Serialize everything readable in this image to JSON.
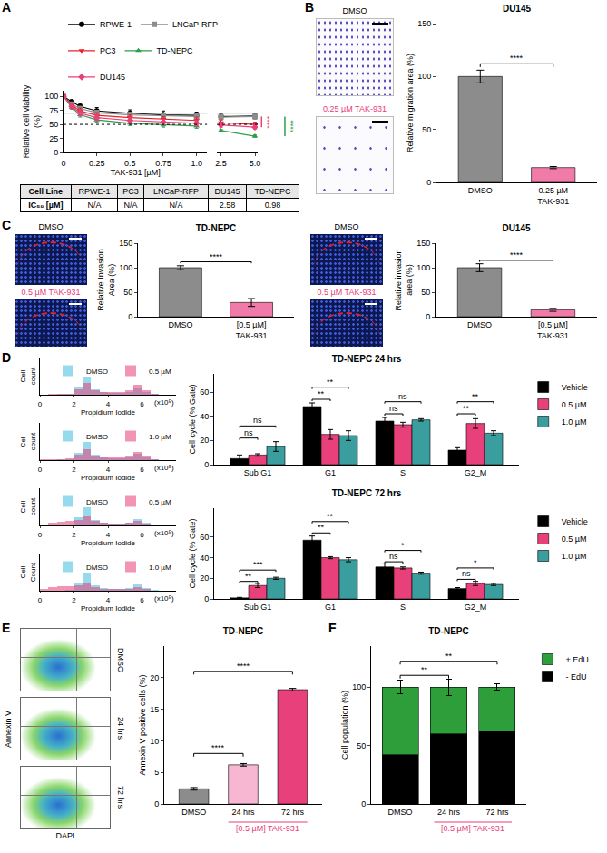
{
  "chart_data": [
    {
      "panel": "A",
      "type": "line",
      "xlabel": "TAK-931 [µM]",
      "ylabel": "Relative cell viability (%)",
      "x": [
        0,
        0.0625,
        0.125,
        0.25,
        0.5,
        0.75,
        1.0,
        2.5,
        5.0
      ],
      "xlim": [
        0,
        1.08
      ],
      "xticks": [
        0,
        0.25,
        0.5,
        0.75,
        {
          "value": 1,
          "label": "1.0"
        }
      ],
      "x2lim": [
        2.2,
        5.2
      ],
      "x2ticks": [
        2.5,
        {
          "value": 5,
          "label": "5.0"
        }
      ],
      "ylim": [
        0,
        110
      ],
      "yticks": [
        0,
        25,
        50,
        75,
        100
      ],
      "legend": "top",
      "series": [
        {
          "name": "RPWE-1",
          "color": "#000000",
          "marker": "circle",
          "values": [
            100,
            90,
            82,
            74,
            70,
            67,
            66,
            64,
            65
          ],
          "errors": [
            0,
            4,
            5,
            6,
            6,
            7,
            6,
            5,
            5
          ]
        },
        {
          "name": "LNCaP-RFP",
          "color": "#8c8c8c",
          "marker": "square",
          "values": [
            100,
            86,
            78,
            71,
            67,
            65,
            64,
            63,
            64
          ],
          "errors": [
            0,
            3,
            4,
            4,
            5,
            5,
            5,
            5,
            4
          ]
        },
        {
          "name": "PC3",
          "color": "#e8202a",
          "marker": "triangle-down",
          "values": [
            100,
            84,
            74,
            66,
            62,
            59,
            57,
            53,
            50
          ],
          "errors": [
            0,
            4,
            5,
            5,
            5,
            5,
            6,
            5,
            4
          ]
        },
        {
          "name": "TD-NEPC",
          "color": "#2e9e4a",
          "marker": "triangle-up",
          "values": [
            100,
            80,
            67,
            58,
            52,
            49,
            47,
            39,
            29
          ],
          "errors": [
            0,
            3,
            4,
            4,
            4,
            4,
            4,
            2,
            2
          ]
        },
        {
          "name": "DU145",
          "color": "#e8407a",
          "marker": "diamond",
          "values": [
            100,
            82,
            70,
            62,
            57,
            54,
            52,
            49,
            45
          ],
          "errors": [
            0,
            4,
            5,
            5,
            5,
            5,
            5,
            4,
            3
          ]
        }
      ],
      "reference_lines": [
        {
          "y": 50,
          "line_style": "dot",
          "color": "#000000"
        },
        {
          "y": 70,
          "line_style": "solid",
          "color": "#999999"
        }
      ],
      "annotations": [
        {
          "text": "****",
          "color": "#e8407a",
          "y": [
            45,
            64
          ]
        },
        {
          "text": "****",
          "color": "#2e9e4a",
          "y": [
            29,
            64
          ]
        }
      ]
    },
    {
      "panel": "B",
      "type": "bar",
      "title": "DU145",
      "ylabel": "Relative migration area (%)",
      "categories": [
        "DMSO",
        "0.25 µM TAK-931"
      ],
      "values": [
        100,
        14
      ],
      "errors": [
        6,
        1
      ],
      "colors": [
        "#8c8c8c",
        "#f07aa8"
      ],
      "ylim": [
        0,
        150
      ],
      "yticks": [
        0,
        50,
        100,
        150
      ],
      "annotations": [
        {
          "from": "DMSO",
          "to": "0.25 µM TAK-931",
          "text": "****",
          "y": 112
        }
      ]
    },
    {
      "panel": "C",
      "type": "bar",
      "title": "TD-NEPC",
      "ylabel": "Relative Invasion Area (%)",
      "categories": [
        "DMSO",
        "[0.5 µM] TAK-931"
      ],
      "values": [
        100,
        29
      ],
      "errors": [
        4,
        8
      ],
      "colors": [
        "#8c8c8c",
        "#f07aa8"
      ],
      "ylim": [
        0,
        150
      ],
      "yticks": [
        0,
        50,
        100,
        150
      ],
      "annotations": [
        {
          "from": "DMSO",
          "to": "[0.5 µM] TAK-931",
          "text": "****",
          "y": 112
        }
      ]
    },
    {
      "type": "bar",
      "title": "DU145",
      "ylabel": "Relative invasion area (%)",
      "categories": [
        "DMSO",
        "[0.5 µM] TAK-931"
      ],
      "values": [
        100,
        14
      ],
      "errors": [
        8,
        3
      ],
      "colors": [
        "#8c8c8c",
        "#f07aa8"
      ],
      "ylim": [
        0,
        150
      ],
      "yticks": [
        0,
        50,
        100,
        150
      ],
      "annotations": [
        {
          "from": "DMSO",
          "to": "[0.5 µM] TAK-931",
          "text": "****",
          "y": 115
        }
      ]
    },
    {
      "panel": "D",
      "type": "histogram",
      "xlabel": "Propidium Iodide",
      "ylabel": "Cell count",
      "bins": [
        0,
        0.5,
        1,
        1.5,
        2,
        2.5,
        3,
        3.5,
        4,
        4.5,
        5,
        5.5,
        6,
        6.5,
        7,
        7.5,
        8
      ],
      "xlim": [
        0,
        8
      ],
      "xticks": [
        0,
        2,
        4,
        6
      ],
      "ylim": [
        0,
        200
      ],
      "tick_labels": "x",
      "legend": "top right",
      "annotations": [
        {
          "text": "(x10⁵)"
        }
      ],
      "series": [
        {
          "name": "DMSO",
          "color": "#3fbfe0",
          "values": [
            1,
            2,
            3,
            5,
            40,
            100,
            30,
            15,
            12,
            12,
            15,
            35,
            15,
            3,
            1,
            0
          ]
        },
        {
          "name": "0.5 µM",
          "color": "#e8407a",
          "values": [
            2,
            3,
            4,
            6,
            28,
            62,
            26,
            16,
            14,
            16,
            26,
            52,
            24,
            5,
            1,
            0
          ]
        }
      ]
    },
    {
      "type": "histogram",
      "xlabel": "Propidium Iodide",
      "ylabel": "Cell count",
      "bins": [
        0,
        0.5,
        1,
        1.5,
        2,
        2.5,
        3,
        3.5,
        4,
        4.5,
        5,
        5.5,
        6,
        6.5,
        7,
        7.5,
        8
      ],
      "xlim": [
        0,
        8
      ],
      "xticks": [
        0,
        2,
        4,
        6
      ],
      "ylim": [
        0,
        200
      ],
      "tick_labels": "x",
      "legend": "top right",
      "annotations": [
        {
          "text": "(x10⁵)"
        }
      ],
      "series": [
        {
          "name": "DMSO",
          "color": "#3fbfe0",
          "values": [
            1,
            2,
            3,
            5,
            40,
            100,
            30,
            15,
            12,
            12,
            15,
            35,
            15,
            3,
            1,
            0
          ]
        },
        {
          "name": "1.0 µM",
          "color": "#e8407a",
          "values": [
            3,
            4,
            6,
            8,
            30,
            60,
            25,
            15,
            13,
            15,
            22,
            45,
            20,
            4,
            1,
            0
          ]
        }
      ]
    },
    {
      "type": "histogram",
      "xlabel": "Propidium Iodide",
      "ylabel": "Cell count",
      "bins": [
        0,
        0.5,
        1,
        1.5,
        2,
        2.5,
        3,
        3.5,
        4,
        4.5,
        5,
        5.5,
        6,
        6.5,
        7,
        7.5,
        8
      ],
      "xlim": [
        0,
        8
      ],
      "xticks": [
        0,
        2,
        4,
        6
      ],
      "ylim": [
        0,
        200
      ],
      "tick_labels": "x",
      "legend": "top right",
      "annotations": [
        {
          "text": "(x10⁵)"
        }
      ],
      "series": [
        {
          "name": "DMSO",
          "color": "#3fbfe0",
          "values": [
            1,
            1,
            2,
            4,
            42,
            100,
            28,
            14,
            11,
            11,
            14,
            32,
            13,
            3,
            1,
            0
          ]
        },
        {
          "name": "0.5 µM",
          "color": "#e8407a",
          "values": [
            6,
            14,
            20,
            22,
            30,
            48,
            22,
            14,
            12,
            12,
            14,
            22,
            10,
            3,
            1,
            0
          ]
        }
      ]
    },
    {
      "type": "histogram",
      "xlabel": "Propidium Iodide",
      "ylabel": "Cell Count",
      "bins": [
        0,
        0.5,
        1,
        1.5,
        2,
        2.5,
        3,
        3.5,
        4,
        4.5,
        5,
        5.5,
        6,
        6.5,
        7,
        7.5,
        8
      ],
      "xlim": [
        0,
        8
      ],
      "xticks": [
        0,
        2,
        4,
        6
      ],
      "ylim": [
        0,
        200
      ],
      "tick_labels": "x",
      "legend": "top right",
      "annotations": [
        {
          "text": "(x10⁵)"
        }
      ],
      "series": [
        {
          "name": "DMSO",
          "color": "#3fbfe0",
          "values": [
            1,
            1,
            2,
            4,
            42,
            100,
            28,
            14,
            11,
            11,
            14,
            32,
            13,
            3,
            1,
            0
          ]
        },
        {
          "name": "1.0 µM",
          "color": "#e8407a",
          "values": [
            10,
            20,
            26,
            26,
            30,
            42,
            20,
            12,
            10,
            10,
            12,
            18,
            8,
            2,
            1,
            0
          ]
        }
      ]
    },
    {
      "type": "bar",
      "title": "TD-NEPC 24 hrs",
      "ylabel": "Cell cycle (% Gate)",
      "legend": "right",
      "categories": [
        "Sub G1",
        "G1",
        "S",
        "G2_M"
      ],
      "series": [
        {
          "name": "Vehicle",
          "color": "#000000",
          "values": [
            5,
            48,
            36,
            12
          ],
          "errors": [
            3,
            3,
            3,
            2
          ]
        },
        {
          "name": "0.5 µM",
          "color": "#e8407a",
          "values": [
            8,
            25,
            33,
            34
          ],
          "errors": [
            1,
            4,
            2,
            4
          ]
        },
        {
          "name": "1.0 µM",
          "color": "#3a9e9e",
          "values": [
            15,
            24,
            37,
            26
          ],
          "errors": [
            4,
            4,
            1,
            2
          ]
        }
      ],
      "ylim": [
        0,
        75
      ],
      "yticks": [
        0,
        20,
        40,
        60
      ],
      "annotations": [
        {
          "category": "Sub G1",
          "from": "Vehicle",
          "to": "0.5 µM",
          "text": "ns",
          "y": 22
        },
        {
          "category": "Sub G1",
          "from": "Vehicle",
          "to": "1.0 µM",
          "text": "ns",
          "y": 32
        },
        {
          "category": "G1",
          "from": "Vehicle",
          "to": "0.5 µM",
          "text": "**",
          "y": 54
        },
        {
          "category": "G1",
          "from": "Vehicle",
          "to": "1.0 µM",
          "text": "**",
          "y": 64
        },
        {
          "category": "S",
          "from": "Vehicle",
          "to": "0.5 µM",
          "text": "ns",
          "y": 42
        },
        {
          "category": "S",
          "from": "Vehicle",
          "to": "1.0 µM",
          "text": "ns",
          "y": 52
        },
        {
          "category": "G2_M",
          "from": "Vehicle",
          "to": "0.5 µM",
          "text": "**",
          "y": 42
        },
        {
          "category": "G2_M",
          "from": "Vehicle",
          "to": "1.0 µM",
          "text": "**",
          "y": 52
        }
      ]
    },
    {
      "type": "bar",
      "title": "TD-NEPC 72 hrs",
      "ylabel": "Cell cycle (% Gate)",
      "legend": "right",
      "categories": [
        "Sub G1",
        "G1",
        "S",
        "G2_M"
      ],
      "series": [
        {
          "name": "Vehicle",
          "color": "#000000",
          "values": [
            1,
            57,
            31,
            10
          ],
          "errors": [
            0.5,
            4,
            3,
            1
          ]
        },
        {
          "name": "0.5 µM",
          "color": "#e8407a",
          "values": [
            13,
            40,
            30,
            15
          ],
          "errors": [
            2,
            1,
            1,
            2
          ]
        },
        {
          "name": "1.0 µM",
          "color": "#3a9e9e",
          "values": [
            20,
            38,
            25,
            14
          ],
          "errors": [
            1,
            2,
            1,
            1
          ]
        }
      ],
      "ylim": [
        0,
        88
      ],
      "yticks": [
        0,
        20,
        40,
        60
      ],
      "annotations": [
        {
          "category": "Sub G1",
          "from": "Vehicle",
          "to": "0.5 µM",
          "text": "**",
          "y": 17
        },
        {
          "category": "Sub G1",
          "from": "Vehicle",
          "to": "1.0 µM",
          "text": "***",
          "y": 28
        },
        {
          "category": "G1",
          "from": "Vehicle",
          "to": "0.5 µM",
          "text": "**",
          "y": 64
        },
        {
          "category": "G1",
          "from": "Vehicle",
          "to": "1.0 µM",
          "text": "**",
          "y": 75
        },
        {
          "category": "S",
          "from": "Vehicle",
          "to": "0.5 µM",
          "text": "ns",
          "y": 36
        },
        {
          "category": "S",
          "from": "Vehicle",
          "to": "1.0 µM",
          "text": "*",
          "y": 47
        },
        {
          "category": "G2_M",
          "from": "Vehicle",
          "to": "0.5 µM",
          "text": "ns",
          "y": 19
        },
        {
          "category": "G2_M",
          "from": "Vehicle",
          "to": "1.0 µM",
          "text": "*",
          "y": 30
        }
      ]
    },
    {
      "panel": "E",
      "type": "bar",
      "title": "TD-NEPC",
      "ylabel": "Annexin V positive cells (%)",
      "categories": [
        "DMSO",
        "24 hrs",
        "72 hrs"
      ],
      "values": [
        2.4,
        6.2,
        18.1
      ],
      "errors": [
        0.2,
        0.2,
        0.2
      ],
      "colors": [
        "#8c8c8c",
        "#f7b6d2",
        "#e8407a"
      ],
      "ylim": [
        0,
        25
      ],
      "yticks": [
        0,
        5,
        10,
        15,
        20
      ],
      "annotations": [
        {
          "from": "DMSO",
          "to": "24 hrs",
          "text": "****",
          "y": 8
        },
        {
          "from": "DMSO",
          "to": "72 hrs",
          "text": "****",
          "y": 21
        }
      ],
      "group_label": {
        "text": "[0.5 µM] TAK-931",
        "from": "24 hrs",
        "to": "72 hrs",
        "color": "#e8407a"
      }
    },
    {
      "panel": "F",
      "type": "bar",
      "title": "TD-NEPC",
      "ylabel": "Cell population (%)",
      "stacked": true,
      "legend": "right",
      "categories": [
        "DMSO",
        "24 hrs",
        "72 hrs"
      ],
      "series": [
        {
          "name": "- EdU",
          "color": "#000000",
          "values": [
            42,
            60,
            62
          ],
          "errors": [
            5,
            6,
            4
          ]
        },
        {
          "name": "+ EdU",
          "color": "#2e9e3a",
          "values": [
            58,
            40,
            38
          ],
          "errors": [
            6,
            7,
            3
          ]
        }
      ],
      "ylim": [
        0,
        135
      ],
      "yticks": [
        0,
        50,
        100
      ],
      "annotations": [
        {
          "from": "DMSO",
          "to": "24 hrs",
          "text": "**",
          "y": 110
        },
        {
          "from": "DMSO",
          "to": "72 hrs",
          "text": "**",
          "y": 122
        }
      ],
      "group_label": {
        "text": "[0.5 µM] TAK-931",
        "from": "24 hrs",
        "to": "72 hrs",
        "color": "#e8407a"
      }
    }
  ],
  "table": {
    "header": [
      "Cell Line",
      "RPWE-1",
      "PC3",
      "LNCaP-RFP",
      "DU145",
      "TD-NEPC"
    ],
    "rows": [
      [
        "IC₅₀ [µM]",
        "N/A",
        "N/A",
        "N/A",
        "2.58",
        "0.98"
      ]
    ]
  },
  "images": [
    {
      "labels": [
        "DMSO",
        "0.25 µM TAK-931"
      ],
      "label_colors": [
        "#000000",
        "#e8407a"
      ]
    },
    {
      "labels": [
        "DMSO",
        "0.5 µM TAK-931"
      ],
      "label_colors": [
        "#000000",
        "#e8407a"
      ]
    },
    {
      "labels": [
        "DMSO",
        "0.5 µM TAK-931"
      ],
      "label_colors": [
        "#000000",
        "#e8407a"
      ]
    },
    {
      "labels": [
        "DMSO",
        "24 hrs",
        "72 hrs"
      ],
      "label_colors": [
        "#000000",
        "#000000",
        "#000000"
      ],
      "xlabel": "DAPI",
      "ylabel": "Annexin V"
    }
  ]
}
